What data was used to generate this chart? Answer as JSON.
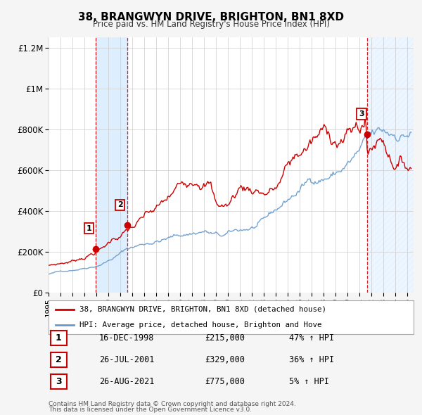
{
  "title": "38, BRANGWYN DRIVE, BRIGHTON, BN1 8XD",
  "subtitle": "Price paid vs. HM Land Registry's House Price Index (HPI)",
  "legend_label_red": "38, BRANGWYN DRIVE, BRIGHTON, BN1 8XD (detached house)",
  "legend_label_blue": "HPI: Average price, detached house, Brighton and Hove",
  "footnote_line1": "Contains HM Land Registry data © Crown copyright and database right 2024.",
  "footnote_line2": "This data is licensed under the Open Government Licence v3.0.",
  "transactions": [
    {
      "num": 1,
      "date": "16-DEC-1998",
      "price": 215000,
      "pct": "47%",
      "dir": "↑",
      "ref": "HPI",
      "year": 1998.96
    },
    {
      "num": 2,
      "date": "26-JUL-2001",
      "price": 329000,
      "pct": "36%",
      "dir": "↑",
      "ref": "HPI",
      "year": 2001.57
    },
    {
      "num": 3,
      "date": "26-AUG-2021",
      "price": 775000,
      "pct": "5%",
      "dir": "↑",
      "ref": "HPI",
      "year": 2021.65
    }
  ],
  "ylim": [
    0,
    1250000
  ],
  "yticks": [
    0,
    200000,
    400000,
    600000,
    800000,
    1000000,
    1200000
  ],
  "ytick_labels": [
    "£0",
    "£200K",
    "£400K",
    "£600K",
    "£800K",
    "£1M",
    "£1.2M"
  ],
  "xlim_start": 1995.0,
  "xlim_end": 2025.5,
  "background_color": "#f5f5f5",
  "plot_bg_color": "#ffffff",
  "red_color": "#cc0000",
  "blue_color": "#6699cc",
  "shade_color": "#ddeeff",
  "vline_color": "#cc0000",
  "grid_color": "#cccccc",
  "hatch_color": "#c8d8e8"
}
